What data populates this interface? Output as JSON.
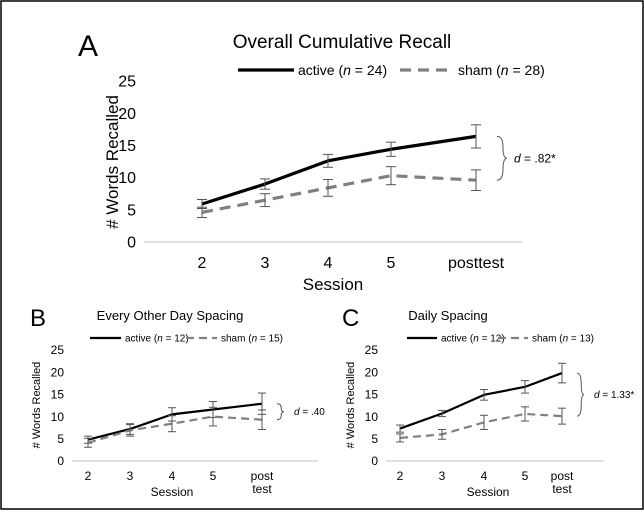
{
  "colors": {
    "active": "#000000",
    "sham": "#808080",
    "frame": "#000000",
    "axis": "#bfbfbf"
  },
  "chart_data": [
    {
      "panel_letter": "A",
      "type": "line",
      "title": "Overall Cumulative Recall",
      "xlabel": "Session",
      "ylabel": "# Words Recalled",
      "categories": [
        "2",
        "3",
        "4",
        "5",
        "posttest"
      ],
      "ylim": [
        0,
        25
      ],
      "yticks": [
        0,
        5,
        10,
        15,
        20,
        25
      ],
      "grid": false,
      "legend_position": "top",
      "series": [
        {
          "name": "active",
          "n_label": "(n = 24)",
          "style": "solid",
          "values": [
            5.9,
            9.0,
            12.6,
            14.4,
            16.4
          ],
          "errors": [
            0.7,
            0.8,
            1.0,
            1.1,
            1.8
          ]
        },
        {
          "name": "sham",
          "n_label": "(n = 28)",
          "style": "dashed",
          "values": [
            4.6,
            6.5,
            8.4,
            10.3,
            9.6
          ],
          "errors": [
            0.8,
            1.0,
            1.3,
            1.4,
            1.6
          ]
        }
      ],
      "effect_label": "d = .82*"
    },
    {
      "panel_letter": "B",
      "type": "line",
      "title": "Every Other Day Spacing",
      "xlabel": "Session",
      "ylabel": "# Words Recalled",
      "categories": [
        "2",
        "3",
        "4",
        "5",
        "post\ntest"
      ],
      "ylim": [
        0,
        25
      ],
      "yticks": [
        0,
        5,
        10,
        15,
        20,
        25
      ],
      "grid": false,
      "legend_position": "top",
      "series": [
        {
          "name": "active",
          "n_label": "(n = 12)",
          "style": "solid",
          "values": [
            4.8,
            7.2,
            10.5,
            11.6,
            12.9
          ],
          "errors": [
            0.8,
            1.2,
            1.5,
            1.8,
            2.4
          ]
        },
        {
          "name": "sham",
          "n_label": "(n = 15)",
          "style": "dashed",
          "values": [
            4.1,
            6.9,
            8.4,
            10.0,
            9.3
          ],
          "errors": [
            1.0,
            1.3,
            1.8,
            2.1,
            2.2
          ]
        }
      ],
      "effect_label": "d = .40"
    },
    {
      "panel_letter": "C",
      "type": "line",
      "title": "Daily Spacing",
      "xlabel": "Session",
      "ylabel": "# Words Recalled",
      "categories": [
        "2",
        "3",
        "4",
        "5",
        "post\ntest"
      ],
      "ylim": [
        0,
        25
      ],
      "yticks": [
        0,
        5,
        10,
        15,
        20,
        25
      ],
      "grid": false,
      "legend_position": "top",
      "series": [
        {
          "name": "active",
          "n_label": "(n = 12)",
          "style": "solid",
          "values": [
            7.3,
            10.7,
            14.9,
            16.7,
            19.8
          ],
          "errors": [
            0.8,
            0.7,
            1.2,
            1.4,
            2.2
          ]
        },
        {
          "name": "sham",
          "n_label": "(n = 13)",
          "style": "dashed",
          "values": [
            5.2,
            6.0,
            8.7,
            10.6,
            10.1
          ],
          "errors": [
            0.9,
            1.1,
            1.6,
            1.6,
            1.8
          ]
        }
      ],
      "effect_label": "d = 1.33*"
    }
  ]
}
